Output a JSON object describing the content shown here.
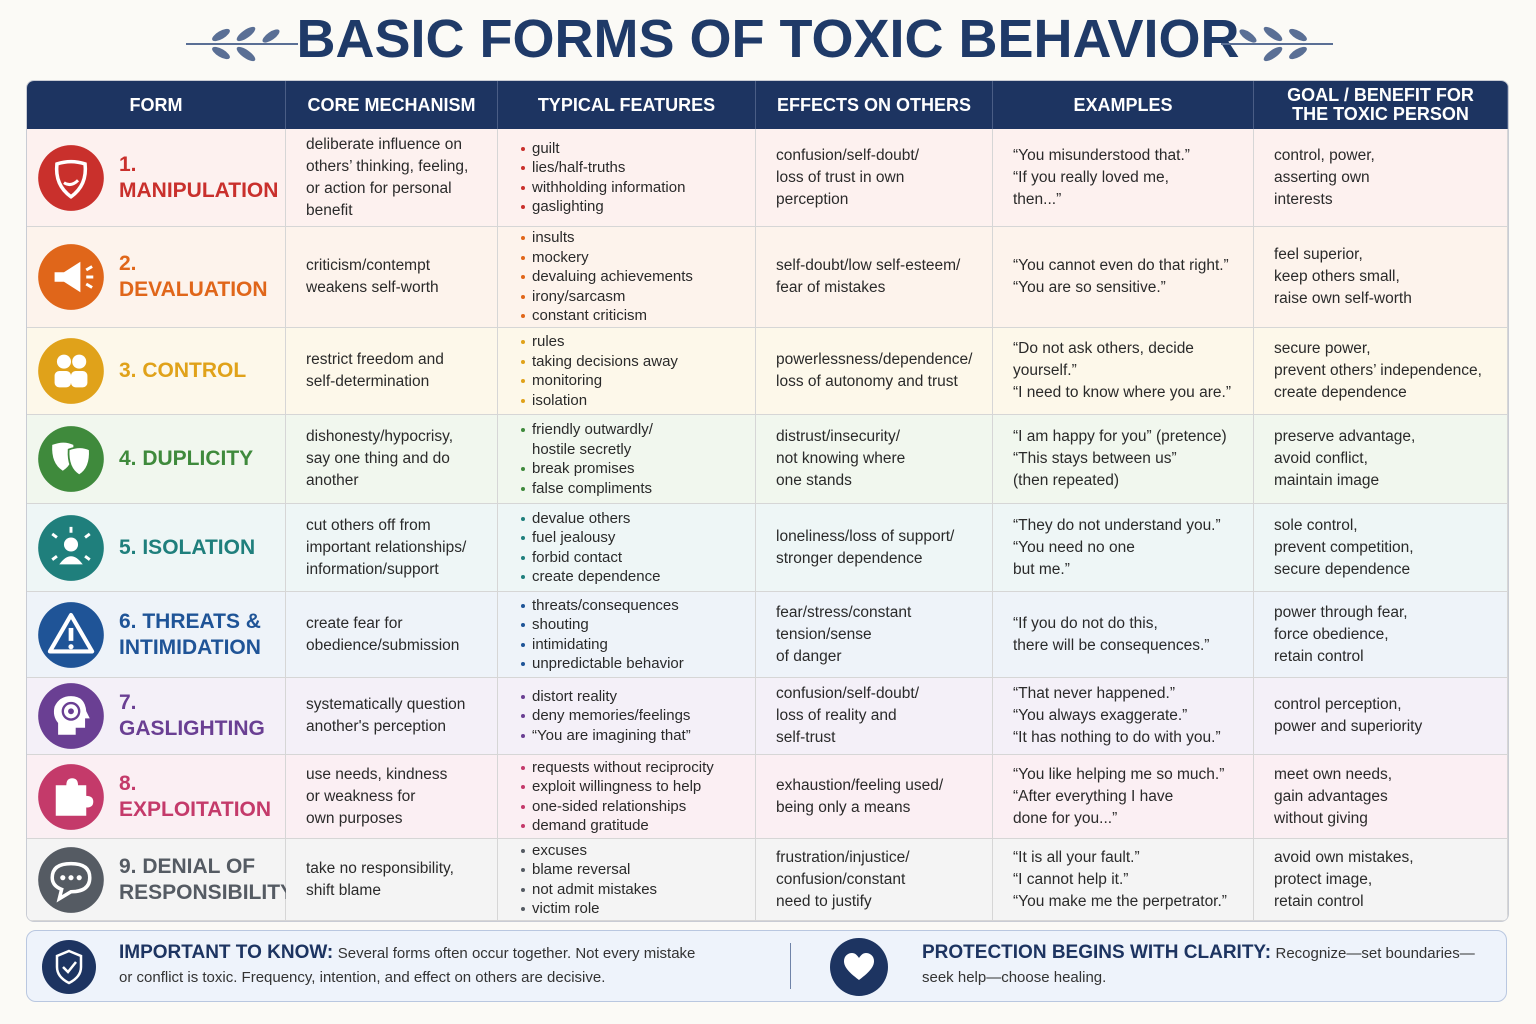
{
  "title": "BASIC FORMS OF TOXIC BEHAVIOR",
  "table": {
    "headers": [
      "FORM",
      "CORE MECHANISM",
      "TYPICAL FEATURES",
      "EFFECTS ON OTHERS",
      "EXAMPLES",
      "GOAL / BENEFIT FOR\nTHE TOXIC PERSON"
    ],
    "rows": [
      {
        "form": "1. MANIPULATION",
        "mechanism": "deliberate influence on\nothers’ thinking, feeling,\nor action for personal\nbenefit",
        "features": [
          "guilt",
          "lies/half-truths",
          "withholding information",
          "gaslighting"
        ],
        "effects": "confusion/self-doubt/\nloss of trust in own\nperception",
        "examples": "“You misunderstood that.”\n“If you really loved me,\nthen...”",
        "goal": "control, power,\nasserting own\ninterests"
      },
      {
        "form": "2. DEVALUATION",
        "mechanism": "criticism/contempt\nweakens self-worth",
        "features": [
          "insults",
          "mockery",
          "devaluing achievements",
          "irony/sarcasm",
          "constant criticism"
        ],
        "effects": "self-doubt/low self-esteem/\nfear of mistakes",
        "examples": "“You cannot even do that right.”\n“You are so sensitive.”",
        "goal": "feel superior,\nkeep others small,\nraise own self-worth"
      },
      {
        "form": "3. CONTROL",
        "mechanism": "restrict freedom and\nself-determination",
        "features": [
          "rules",
          "taking decisions away",
          "monitoring",
          "isolation"
        ],
        "effects": "powerlessness/dependence/\nloss of autonomy and trust",
        "examples": "“Do not ask others, decide\nyourself.”\n“I need to know where you are.”",
        "goal": "secure power,\nprevent others’ independence,\ncreate dependence"
      },
      {
        "form": "4. DUPLICITY",
        "mechanism": "dishonesty/hypocrisy,\nsay one thing and do\nanother",
        "features": [
          "friendly outwardly/\nhostile secretly",
          "break promises",
          "false compliments"
        ],
        "effects": "distrust/insecurity/\nnot knowing where\none stands",
        "examples": "“I am happy for you” (pretence)\n“This stays between us”\n(then repeated)",
        "goal": "preserve advantage,\navoid conflict,\nmaintain image"
      },
      {
        "form": "5. ISOLATION",
        "mechanism": "cut others off from\nimportant relationships/\ninformation/support",
        "features": [
          "devalue others",
          "fuel jealousy",
          "forbid contact",
          "create dependence"
        ],
        "effects": "loneliness/loss of support/\nstronger dependence",
        "examples": "“They do not understand you.”\n“You need no one\nbut me.”",
        "goal": "sole control,\nprevent competition,\nsecure dependence"
      },
      {
        "form": "6. THREATS &\nINTIMIDATION",
        "mechanism": "create fear for\nobedience/submission",
        "features": [
          "threats/consequences",
          "shouting",
          "intimidating",
          "unpredictable behavior"
        ],
        "effects": "fear/stress/constant\ntension/sense\nof danger",
        "examples": "“If you do not do this,\nthere will be consequences.”",
        "goal": "power through fear,\nforce obedience,\nretain control"
      },
      {
        "form": "7. GASLIGHTING",
        "mechanism": "systematically question\nanother's perception",
        "features": [
          "distort reality",
          "deny memories/feelings",
          "“You are imagining that”"
        ],
        "effects": "confusion/self-doubt/\nloss of reality and\nself-trust",
        "examples": "“That never happened.”\n“You always exaggerate.”\n“It has nothing to do with you.”",
        "goal": "control perception,\npower and superiority"
      },
      {
        "form": "8. EXPLOITATION",
        "mechanism": "use needs, kindness\nor weakness for\nown purposes",
        "features": [
          "requests without reciprocity",
          "exploit willingness to help",
          "one-sided relationships",
          "demand gratitude"
        ],
        "effects": "exhaustion/feeling used/\nbeing only a means",
        "examples": "“You like helping me so much.”\n“After everything I have\ndone for you...”",
        "goal": "meet own needs,\ngain advantages\nwithout giving"
      },
      {
        "form": "9. DENIAL OF\nRESPONSIBILITY",
        "mechanism": "take no responsibility,\nshift blame",
        "features": [
          "excuses",
          "blame reversal",
          "not admit mistakes",
          "victim role"
        ],
        "effects": "frustration/injustice/\nconfusion/constant\nneed to justify",
        "examples": "“It is all your fault.”\n“I cannot help it.”\n“You make me the perpetrator.”",
        "goal": "avoid own mistakes,\nprotect image,\nretain control"
      }
    ]
  },
  "footer": {
    "left": {
      "heading": "IMPORTANT TO KNOW:",
      "text": "Several forms often occur together. Not every mistake or conflict is toxic. Frequency, intention, and effect on others are decisive."
    },
    "right": {
      "heading": "PROTECTION BEGINS WITH CLARITY:",
      "text": "Recognize—set boundaries—seek help—choose healing."
    }
  }
}
